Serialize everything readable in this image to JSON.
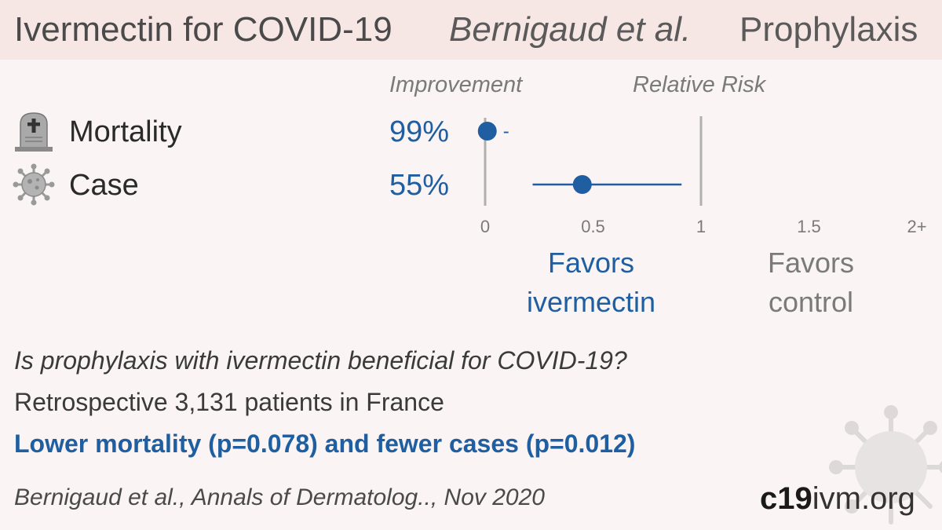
{
  "header": {
    "title": "Ivermectin for COVID-19",
    "author": "Bernigaud et al.",
    "study_type": "Prophylaxis"
  },
  "columns": {
    "improvement": "Improvement",
    "relative_risk": "Relative Risk"
  },
  "chart_data": {
    "type": "forest",
    "xaxis": {
      "ticks": [
        "0",
        "0.5",
        "1",
        "1.5",
        "2+"
      ],
      "range": [
        0,
        2
      ]
    },
    "reference_line": 1,
    "rows": [
      {
        "label": "Mortality",
        "icon": "tombstone-icon",
        "improvement": "99%",
        "rr": 0.01,
        "ci_low": null,
        "ci_high": null,
        "ci_note": "-"
      },
      {
        "label": "Case",
        "icon": "virus-icon",
        "improvement": "55%",
        "rr": 0.45,
        "ci_low": 0.22,
        "ci_high": 0.91
      }
    ],
    "favors_left": [
      "Favors",
      "ivermectin"
    ],
    "favors_right": [
      "Favors",
      "control"
    ]
  },
  "summary": {
    "question": "Is prophylaxis with ivermectin beneficial for COVID-19?",
    "design": "Retrospective 3,131 patients in France",
    "conclusion": "Lower mortality (p=0.078) and fewer cases (p=0.012)",
    "citation": "Bernigaud et al., Annals of Dermatolog.., Nov 2020"
  },
  "branding": {
    "site_strong": "c19",
    "site_rest": "ivm.org"
  },
  "colors": {
    "accent": "#1f5fa1",
    "axis": "#b0b0b0",
    "header_bg": "#f6e7e5",
    "page_bg": "#fbf4f4"
  }
}
